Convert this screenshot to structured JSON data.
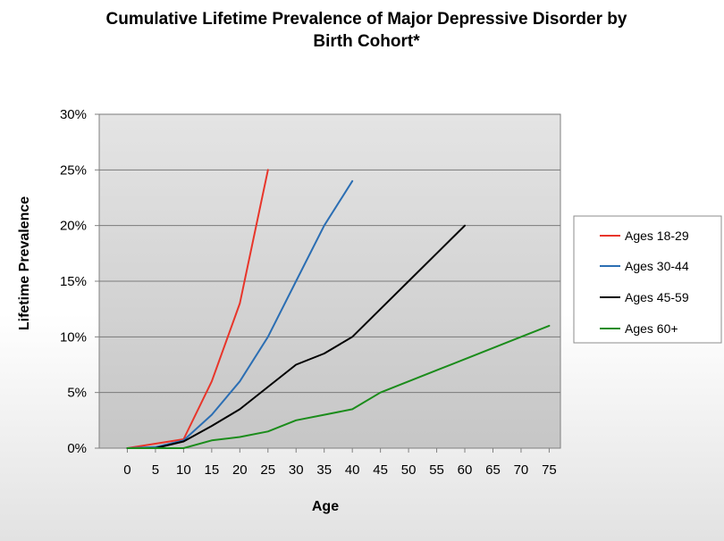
{
  "chart_data": {
    "type": "line",
    "title_line1": "Cumulative Lifetime Prevalence of Major Depressive Disorder by",
    "title_line2": "Birth Cohort*",
    "xlabel": "Age",
    "ylabel": "Lifetime Prevalence",
    "xlim": [
      -5,
      77
    ],
    "ylim": [
      0,
      30
    ],
    "x_ticks": [
      0,
      5,
      10,
      15,
      20,
      25,
      30,
      35,
      40,
      45,
      50,
      55,
      60,
      65,
      70,
      75
    ],
    "y_ticks": [
      0,
      5,
      10,
      15,
      20,
      25,
      30
    ],
    "y_tick_labels": [
      "0%",
      "5%",
      "10%",
      "15%",
      "20%",
      "25%",
      "30%"
    ],
    "grid": "horizontal",
    "legend_position": "right",
    "series": [
      {
        "name": "Ages 18-29",
        "color": "#e8352a",
        "x": [
          0,
          5,
          10,
          15,
          20,
          25
        ],
        "y": [
          0,
          0.4,
          0.8,
          6,
          13,
          25
        ]
      },
      {
        "name": "Ages 30-44",
        "color": "#2b6eb3",
        "x": [
          0,
          5,
          10,
          15,
          20,
          25,
          30,
          35,
          40
        ],
        "y": [
          0,
          0.1,
          0.7,
          3,
          6,
          10,
          15,
          20,
          24
        ]
      },
      {
        "name": "Ages 45-59",
        "color": "#000000",
        "x": [
          0,
          5,
          10,
          15,
          20,
          25,
          30,
          35,
          40,
          45,
          50,
          55,
          60
        ],
        "y": [
          0,
          0,
          0.6,
          2,
          3.5,
          5.5,
          7.5,
          8.5,
          10,
          12.5,
          15,
          17.5,
          20
        ]
      },
      {
        "name": "Ages 60+",
        "color": "#1b8c1b",
        "x": [
          0,
          5,
          10,
          15,
          20,
          25,
          30,
          35,
          40,
          45,
          50,
          55,
          60,
          65,
          70,
          75
        ],
        "y": [
          0,
          0,
          0,
          0.7,
          1,
          1.5,
          2.5,
          3,
          3.5,
          5,
          6,
          7,
          8,
          9,
          10,
          11
        ]
      }
    ]
  }
}
